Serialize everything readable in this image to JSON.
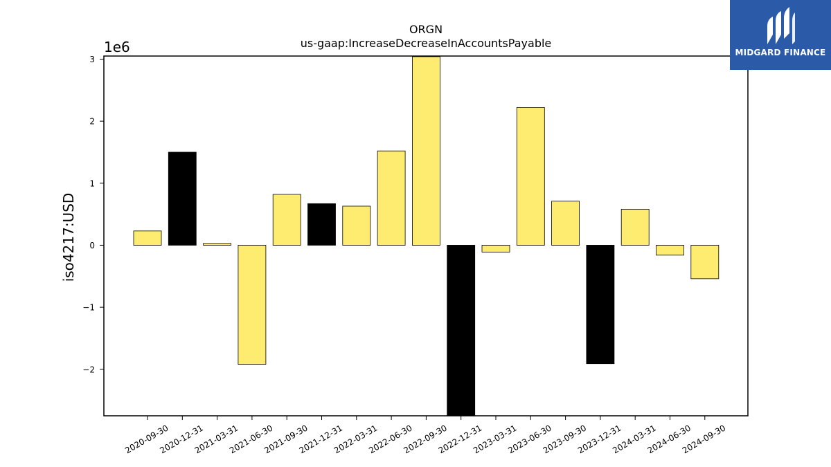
{
  "chart_data": {
    "type": "bar",
    "title": "ORGN",
    "subtitle": "us-gaap:IncreaseDecreaseInAccountsPayable",
    "xlabel": "",
    "ylabel": "iso4217:USD",
    "y_scale_label": "1e6",
    "ylim": [
      -2.75,
      3.05
    ],
    "yticks": [
      -2,
      -1,
      0,
      1,
      2,
      3
    ],
    "ytick_labels": [
      "−2",
      "−1",
      "0",
      "1",
      "2",
      "3"
    ],
    "grid": false,
    "categories": [
      "2020-09-30",
      "2020-12-31",
      "2021-03-31",
      "2021-06-30",
      "2021-09-30",
      "2021-12-31",
      "2022-03-31",
      "2022-06-30",
      "2022-09-30",
      "2022-12-31",
      "2023-03-31",
      "2023-06-30",
      "2023-09-30",
      "2023-12-31",
      "2024-03-31",
      "2024-06-30",
      "2024-09-30"
    ],
    "values": [
      0.23,
      1.5,
      0.03,
      -1.92,
      0.82,
      0.67,
      0.63,
      1.52,
      3.04,
      -2.75,
      -0.11,
      2.22,
      0.71,
      -1.91,
      0.58,
      -0.16,
      -0.54
    ],
    "bar_colors": [
      "#fdec6f",
      "#000000",
      "#fdec6f",
      "#fdec6f",
      "#fdec6f",
      "#000000",
      "#fdec6f",
      "#fdec6f",
      "#fdec6f",
      "#000000",
      "#fdec6f",
      "#fdec6f",
      "#fdec6f",
      "#000000",
      "#fdec6f",
      "#fdec6f",
      "#fdec6f"
    ],
    "colors": {
      "highlight": "#fdec6f",
      "annual": "#000000"
    }
  },
  "logo": {
    "text": "MIDGARD FINANCE",
    "background": "#2a5aa8"
  }
}
